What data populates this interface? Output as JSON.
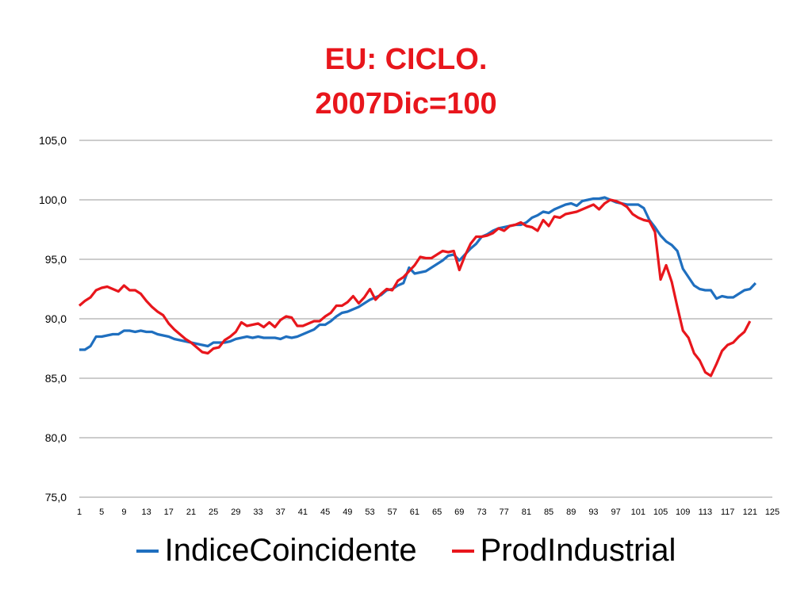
{
  "colors": {
    "title": "#e8161c",
    "indice": "#1f6fbf",
    "prod": "#e8161c",
    "grid": "#9a9a9a"
  },
  "chart_data": {
    "type": "line",
    "title": "EU: CICLO.",
    "subtitle": "2007Dic=100",
    "xlabel": "",
    "ylabel": "",
    "xlim": [
      1,
      125
    ],
    "ylim": [
      75,
      105
    ],
    "grid": true,
    "legend_position": "bottom",
    "y_ticks": [
      "75,0",
      "80,0",
      "85,0",
      "90,0",
      "95,0",
      "100,0",
      "105,0"
    ],
    "x_ticks": [
      "1",
      "5",
      "9",
      "13",
      "17",
      "21",
      "25",
      "29",
      "33",
      "37",
      "41",
      "45",
      "49",
      "53",
      "57",
      "61",
      "65",
      "69",
      "73",
      "77",
      "81",
      "85",
      "89",
      "93",
      "97",
      "101",
      "105",
      "109",
      "113",
      "117",
      "121",
      "125"
    ],
    "series": [
      {
        "name": "IndiceCoincidente",
        "x": [
          1,
          2,
          3,
          4,
          5,
          6,
          7,
          8,
          9,
          10,
          11,
          12,
          13,
          14,
          15,
          16,
          17,
          18,
          19,
          20,
          21,
          22,
          23,
          24,
          25,
          26,
          27,
          28,
          29,
          30,
          31,
          32,
          33,
          34,
          35,
          36,
          37,
          38,
          39,
          40,
          41,
          42,
          43,
          44,
          45,
          46,
          47,
          48,
          49,
          50,
          51,
          52,
          53,
          54,
          55,
          56,
          57,
          58,
          59,
          60,
          61,
          62,
          63,
          64,
          65,
          66,
          67,
          68,
          69,
          70,
          71,
          72,
          73,
          74,
          75,
          76,
          77,
          78,
          79,
          80,
          81,
          82,
          83,
          84,
          85,
          86,
          87,
          88,
          89,
          90,
          91,
          92,
          93,
          94,
          95,
          96,
          97,
          98,
          99,
          100,
          101,
          102,
          103,
          104,
          105,
          106,
          107,
          108,
          109,
          110,
          111,
          112,
          113,
          114,
          115,
          116,
          117,
          118,
          119,
          120,
          121,
          122
        ],
        "values": [
          87.4,
          87.4,
          87.7,
          88.5,
          88.5,
          88.6,
          88.7,
          88.7,
          89.0,
          89.0,
          88.9,
          89.0,
          88.9,
          88.9,
          88.7,
          88.6,
          88.5,
          88.3,
          88.2,
          88.1,
          88.0,
          87.9,
          87.8,
          87.7,
          88.0,
          88.0,
          88.0,
          88.1,
          88.3,
          88.4,
          88.5,
          88.4,
          88.5,
          88.4,
          88.4,
          88.4,
          88.3,
          88.5,
          88.4,
          88.5,
          88.7,
          88.9,
          89.1,
          89.5,
          89.5,
          89.8,
          90.2,
          90.5,
          90.6,
          90.8,
          91.0,
          91.3,
          91.6,
          91.8,
          92.0,
          92.4,
          92.5,
          92.8,
          93.0,
          94.3,
          93.8,
          93.9,
          94.0,
          94.3,
          94.6,
          94.9,
          95.3,
          95.4,
          94.9,
          95.4,
          95.9,
          96.3,
          96.9,
          97.1,
          97.4,
          97.6,
          97.7,
          97.8,
          97.9,
          97.9,
          98.1,
          98.5,
          98.7,
          99.0,
          98.9,
          99.2,
          99.4,
          99.6,
          99.7,
          99.5,
          99.9,
          100.0,
          100.1,
          100.1,
          100.2,
          100.0,
          99.8,
          99.7,
          99.6,
          99.6,
          99.6,
          99.3,
          98.3,
          97.7,
          97.0,
          96.5,
          96.2,
          95.7,
          94.2,
          93.5,
          92.8,
          92.5,
          92.4,
          92.4,
          91.7,
          91.9,
          91.8,
          91.8,
          92.1,
          92.4,
          92.5,
          93.0
        ]
      },
      {
        "name": "ProdIndustrial",
        "x": [
          1,
          2,
          3,
          4,
          5,
          6,
          7,
          8,
          9,
          10,
          11,
          12,
          13,
          14,
          15,
          16,
          17,
          18,
          19,
          20,
          21,
          22,
          23,
          24,
          25,
          26,
          27,
          28,
          29,
          30,
          31,
          32,
          33,
          34,
          35,
          36,
          37,
          38,
          39,
          40,
          41,
          42,
          43,
          44,
          45,
          46,
          47,
          48,
          49,
          50,
          51,
          52,
          53,
          54,
          55,
          56,
          57,
          58,
          59,
          60,
          61,
          62,
          63,
          64,
          65,
          66,
          67,
          68,
          69,
          70,
          71,
          72,
          73,
          74,
          75,
          76,
          77,
          78,
          79,
          80,
          81,
          82,
          83,
          84,
          85,
          86,
          87,
          88,
          89,
          90,
          91,
          92,
          93,
          94,
          95,
          96,
          97,
          98,
          99,
          100,
          101,
          102,
          103,
          104,
          105,
          106,
          107,
          108,
          109,
          110,
          111,
          112,
          113,
          114,
          115,
          116,
          117,
          118,
          119,
          120,
          121
        ],
        "values": [
          91.1,
          91.5,
          91.8,
          92.4,
          92.6,
          92.7,
          92.5,
          92.3,
          92.8,
          92.4,
          92.4,
          92.1,
          91.5,
          91.0,
          90.6,
          90.3,
          89.6,
          89.1,
          88.7,
          88.3,
          88.0,
          87.6,
          87.2,
          87.1,
          87.5,
          87.6,
          88.2,
          88.5,
          88.9,
          89.7,
          89.4,
          89.5,
          89.6,
          89.3,
          89.7,
          89.3,
          89.9,
          90.2,
          90.1,
          89.4,
          89.4,
          89.6,
          89.8,
          89.8,
          90.2,
          90.5,
          91.1,
          91.1,
          91.4,
          91.9,
          91.3,
          91.8,
          92.5,
          91.6,
          92.1,
          92.5,
          92.4,
          93.2,
          93.5,
          94.0,
          94.5,
          95.2,
          95.1,
          95.1,
          95.4,
          95.7,
          95.6,
          95.7,
          94.1,
          95.3,
          96.3,
          96.9,
          96.9,
          97.0,
          97.2,
          97.6,
          97.4,
          97.8,
          97.9,
          98.1,
          97.8,
          97.7,
          97.4,
          98.3,
          97.8,
          98.6,
          98.5,
          98.8,
          98.9,
          99.0,
          99.2,
          99.4,
          99.6,
          99.2,
          99.7,
          100.0,
          99.9,
          99.7,
          99.4,
          98.8,
          98.5,
          98.3,
          98.2,
          97.3,
          93.3,
          94.5,
          93.1,
          91.0,
          89.0,
          88.4,
          87.1,
          86.5,
          85.5,
          85.2,
          86.2,
          87.3,
          87.8,
          88.0,
          88.5,
          88.9,
          89.8
        ]
      }
    ]
  }
}
